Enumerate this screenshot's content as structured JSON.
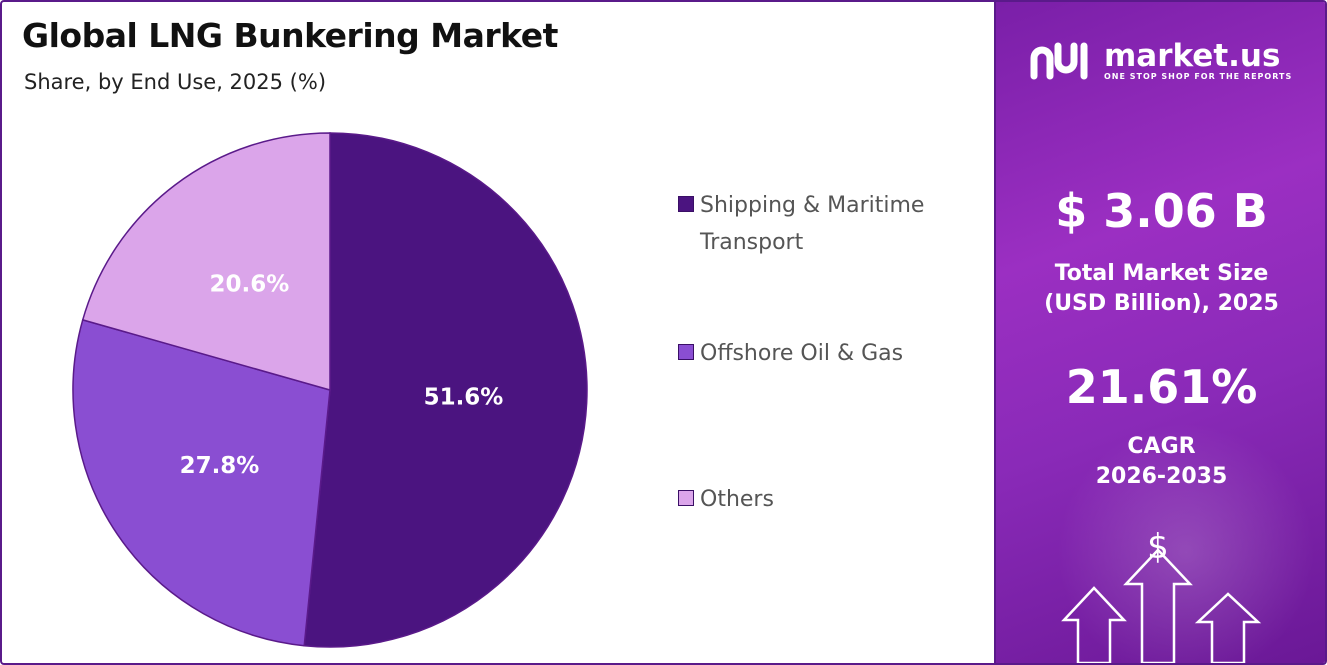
{
  "title": "Global LNG Bunkering Market",
  "subtitle": "Share, by End Use, 2025 (%)",
  "colors": {
    "border": "#5a1a8a",
    "panel": "#8a2ab8",
    "shipping": "#4b1480",
    "offshore": "#8a4ed2",
    "others": "#dba5ea"
  },
  "chart_data": {
    "type": "pie",
    "categories": [
      "Shipping & Maritime Transport",
      "Offshore Oil & Gas",
      "Others"
    ],
    "values": [
      51.6,
      27.8,
      20.6
    ],
    "labels": [
      "51.6%",
      "27.8%",
      "20.6%"
    ],
    "colors": [
      "#4b1480",
      "#8a4ed2",
      "#dba5ea"
    ],
    "legend_position": "right"
  },
  "legend": [
    {
      "label": "Shipping & Maritime Transport",
      "color": "#4b1480"
    },
    {
      "label": "Offshore Oil & Gas",
      "color": "#8a4ed2"
    },
    {
      "label": "Others",
      "color": "#dba5ea"
    }
  ],
  "panel": {
    "brand_name": "market.us",
    "brand_tagline": "ONE STOP SHOP FOR THE REPORTS",
    "market_size": "$ 3.06 B",
    "market_size_label_line1": "Total Market Size",
    "market_size_label_line2": "(USD Billion), 2025",
    "cagr_value": "21.61%",
    "cagr_label_line1": "CAGR",
    "cagr_label_line2": "2026-2035",
    "icon": "dollar-growth-arrows-icon"
  }
}
